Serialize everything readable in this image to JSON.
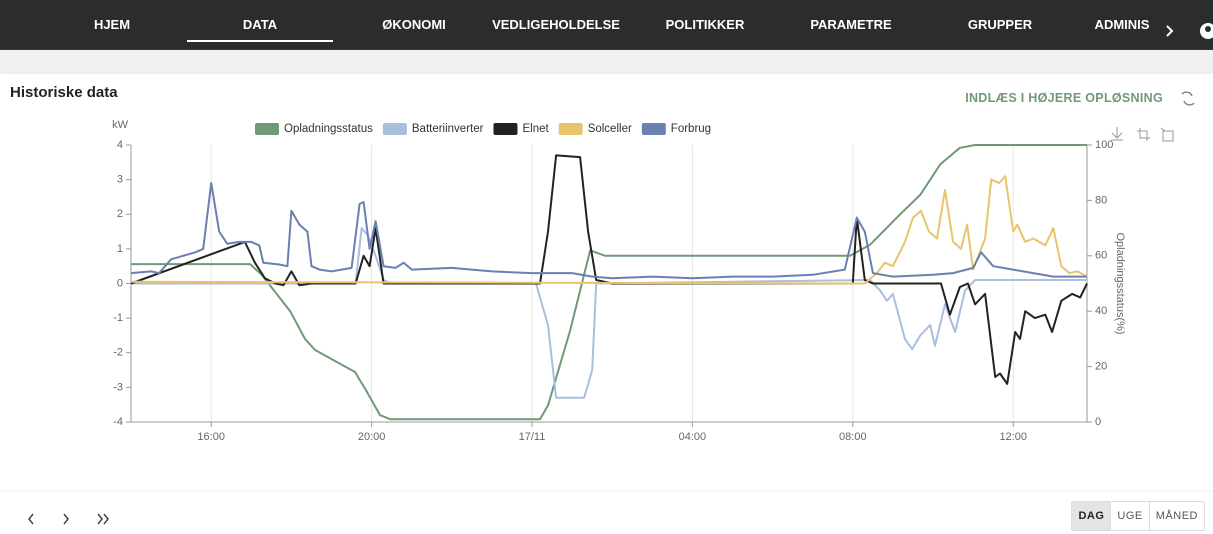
{
  "nav": {
    "items": [
      "HJEM",
      "DATA",
      "ØKONOMI",
      "VEDLIGEHOLDELSE",
      "POLITIKKER",
      "PARAMETRE",
      "GRUPPER",
      "ADMINIS"
    ],
    "active_index": 1
  },
  "header": {
    "title": "Historiske data",
    "action": "INDLÆS I HØJERE OPLØSNING"
  },
  "chart_data": {
    "type": "line",
    "y_label": "kW",
    "y2_label": "Opladningsstatus(%)",
    "xlim": [
      14,
      37.84
    ],
    "xticks": [
      {
        "value": 16,
        "label": "16:00"
      },
      {
        "value": 20,
        "label": "20:00"
      },
      {
        "value": 24,
        "label": "17/11"
      },
      {
        "value": 28,
        "label": "04:00"
      },
      {
        "value": 32,
        "label": "08:00"
      },
      {
        "value": 36,
        "label": "12:00"
      }
    ],
    "ylim": [
      -4,
      4
    ],
    "yticks": [
      -4,
      -3,
      -2,
      -1,
      0,
      1,
      2,
      3,
      4
    ],
    "y2lim": [
      0,
      100
    ],
    "y2ticks": [
      0,
      20,
      40,
      60,
      80,
      100
    ],
    "grid": "x",
    "legend": "top",
    "series": [
      {
        "name": "Opladningsstatus",
        "color": "#6f9a78",
        "axis": "y2",
        "x": [
          14.0,
          16.97,
          17.27,
          17.97,
          18.34,
          18.59,
          19.59,
          19.71,
          19.84,
          20.21,
          20.46,
          24.2,
          24.4,
          24.95,
          25.45,
          25.82,
          31.93,
          32.43,
          33.18,
          33.68,
          34.18,
          34.67,
          35.05,
          37.84
        ],
        "values": [
          57,
          57,
          53,
          40,
          30,
          26,
          18,
          15,
          12,
          2.5,
          1,
          1,
          6,
          33,
          62,
          60,
          60,
          64,
          75,
          82,
          93,
          99,
          100,
          100
        ]
      },
      {
        "name": "Batteriinverter",
        "color": "#a8bfdd",
        "x": [
          14.0,
          19.6,
          19.75,
          19.9,
          20.1,
          20.3,
          20.5,
          24.1,
          24.4,
          24.6,
          25.3,
          25.5,
          25.6,
          32.43,
          32.68,
          32.85,
          33.0,
          33.3,
          33.48,
          33.68,
          33.93,
          34.05,
          34.3,
          34.55,
          34.8,
          35.05,
          37.84
        ],
        "values": [
          0,
          0,
          1.6,
          1.4,
          0.8,
          0.1,
          0,
          0,
          -1.2,
          -3.3,
          -3.3,
          -2.5,
          0,
          0.1,
          -0.2,
          -0.5,
          -0.3,
          -1.6,
          -1.9,
          -1.5,
          -1.2,
          -1.8,
          -0.6,
          -1.4,
          -0.2,
          0.1,
          0.1
        ]
      },
      {
        "name": "Elnet",
        "color": "#222222",
        "x": [
          14.0,
          16.84,
          17.09,
          17.34,
          17.6,
          17.8,
          18.0,
          18.2,
          18.5,
          19.6,
          19.8,
          19.95,
          20.1,
          20.3,
          24.2,
          24.4,
          24.6,
          25.2,
          25.4,
          25.6,
          26.0,
          32.0,
          32.1,
          32.3,
          32.5,
          34.2,
          34.42,
          34.67,
          34.87,
          35.05,
          35.3,
          35.55,
          35.67,
          35.85,
          36.05,
          36.17,
          36.3,
          36.54,
          36.8,
          36.97,
          37.2,
          37.47,
          37.67,
          37.84
        ],
        "values": [
          0,
          1.2,
          0.6,
          0.15,
          0,
          -0.05,
          0.35,
          -0.05,
          0,
          0,
          0.8,
          0.5,
          1.6,
          0,
          0,
          1.5,
          3.7,
          3.65,
          1.5,
          0.1,
          0,
          0,
          1.9,
          0.1,
          0,
          0,
          -0.9,
          -0.1,
          0,
          -0.6,
          -0.3,
          -2.7,
          -2.6,
          -2.9,
          -1.4,
          -1.6,
          -0.8,
          -1.0,
          -0.9,
          -1.4,
          -0.5,
          -0.3,
          -0.4,
          0
        ]
      },
      {
        "name": "Solceller",
        "color": "#e8c46a",
        "x": [
          14.0,
          32.3,
          32.6,
          32.8,
          33.0,
          33.3,
          33.5,
          33.7,
          33.9,
          34.1,
          34.3,
          34.5,
          34.7,
          34.85,
          35.0,
          35.3,
          35.45,
          35.65,
          35.8,
          36.0,
          36.1,
          36.3,
          36.5,
          36.8,
          37.0,
          37.2,
          37.4,
          37.6,
          37.84
        ],
        "values": [
          0.05,
          0,
          0.3,
          0.6,
          0.5,
          1.2,
          1.9,
          2.1,
          1.5,
          1.3,
          2.7,
          1.2,
          1.0,
          1.7,
          0.4,
          1.3,
          3.0,
          2.9,
          3.1,
          1.5,
          1.7,
          1.2,
          1.3,
          1.1,
          1.6,
          0.5,
          0.3,
          0.35,
          0.2
        ]
      },
      {
        "name": "Forbrug",
        "color": "#6b7fb0",
        "x": [
          14.0,
          14.5,
          14.7,
          15.0,
          15.3,
          15.6,
          15.8,
          16.0,
          16.2,
          16.4,
          16.7,
          17.0,
          17.2,
          17.3,
          17.7,
          17.9,
          18.0,
          18.2,
          18.4,
          18.5,
          18.7,
          19.0,
          19.5,
          19.7,
          19.8,
          19.95,
          20.1,
          20.3,
          20.6,
          20.8,
          21.0,
          22.0,
          23.0,
          24.0,
          25.0,
          25.5,
          26.0,
          27.0,
          28.0,
          29.0,
          30.0,
          31.0,
          31.8,
          32.1,
          32.3,
          32.5,
          33.0,
          34.0,
          34.5,
          35.0,
          35.2,
          35.5,
          36.0,
          36.5,
          37.0,
          37.84
        ],
        "values": [
          0.3,
          0.35,
          0.3,
          0.7,
          0.8,
          0.9,
          1.0,
          2.9,
          1.5,
          1.15,
          1.2,
          1.2,
          1.1,
          0.6,
          0.55,
          0.5,
          2.1,
          1.7,
          1.5,
          0.5,
          0.4,
          0.35,
          0.45,
          2.3,
          2.35,
          1.0,
          1.8,
          0.5,
          0.45,
          0.6,
          0.4,
          0.45,
          0.35,
          0.3,
          0.3,
          0.2,
          0.15,
          0.2,
          0.15,
          0.2,
          0.2,
          0.25,
          0.4,
          1.9,
          1.5,
          0.3,
          0.2,
          0.25,
          0.3,
          0.45,
          0.9,
          0.5,
          0.4,
          0.3,
          0.2,
          0.2
        ]
      }
    ]
  },
  "footer": {
    "range_buttons": [
      "DAG",
      "UGE",
      "MÅNED"
    ],
    "active_index": 0
  }
}
